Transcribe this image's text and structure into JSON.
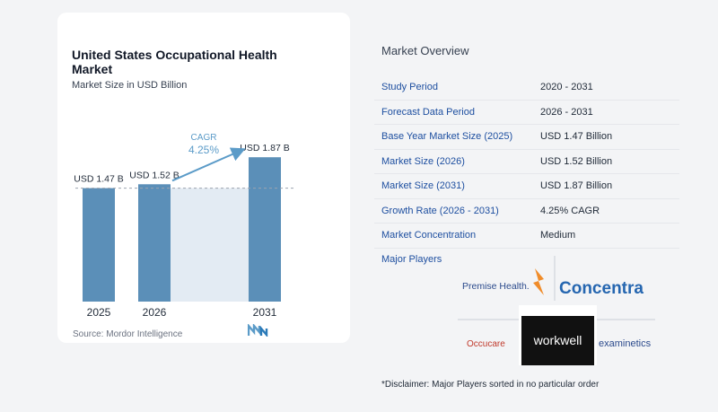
{
  "chart_data": {
    "type": "bar",
    "title": "United States Occupational Health Market",
    "subtitle": "Market Size in USD Billion",
    "categories": [
      "2025",
      "2026",
      "2031"
    ],
    "values": [
      1.47,
      1.52,
      1.87
    ],
    "value_labels": [
      "USD 1.47 B",
      "USD 1.52 B",
      "USD 1.87 B"
    ],
    "annotation": {
      "label": "CAGR",
      "value": "4.25%"
    },
    "colors": {
      "bar": "#5b8fb8",
      "band": "#e3ebf3",
      "accent": "#5b9bc8"
    }
  },
  "source_label": "Source:  Mordor Intelligence",
  "source_logo_icon": "mordor-intelligence-logo",
  "overview": {
    "title": "Market Overview",
    "rows": [
      {
        "label": "Study Period",
        "value": "2020 - 2031"
      },
      {
        "label": "Forecast Data Period",
        "value": "2026 - 2031"
      },
      {
        "label": "Base Year Market Size (2025)",
        "value": "USD 1.47 Billion"
      },
      {
        "label": "Market Size (2026)",
        "value": "USD 1.52 Billion"
      },
      {
        "label": "Market Size (2031)",
        "value": "USD 1.87 Billion"
      },
      {
        "label": "Growth Rate (2026 - 2031)",
        "value": "4.25% CAGR"
      },
      {
        "label": "Market Concentration",
        "value": "Medium"
      }
    ]
  },
  "players": {
    "title": "Major Players",
    "logos": [
      "Premise Health.",
      "Concentra",
      "Occucare",
      "workwell",
      "examinetics"
    ]
  },
  "disclaimer": "*Disclaimer: Major Players sorted in no particular order"
}
